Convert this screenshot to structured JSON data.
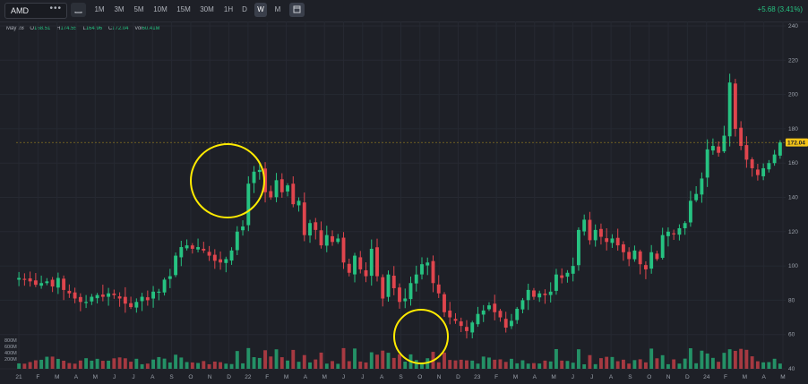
{
  "toolbar": {
    "symbol": "AMD",
    "more": "•••",
    "timeframes": [
      "1M",
      "3M",
      "5M",
      "10M",
      "15M",
      "30M",
      "1H",
      "D",
      "W",
      "M"
    ],
    "active_timeframe": "W",
    "change": "+5.68 (3.41%)"
  },
  "ohlc": {
    "date": "May 28",
    "o_label": "O",
    "o": "168.51",
    "h_label": "H",
    "h": "174.55",
    "l_label": "L",
    "l": "164.96",
    "c_label": "C",
    "c": "172.04",
    "vol_label": "Vol",
    "vol": "60.41M"
  },
  "colors": {
    "up": "#26c281",
    "down": "#e0454d",
    "background": "#1e2027",
    "price_tag": "#f5c518",
    "circle": "#ffeb00"
  },
  "chart_data": {
    "type": "candlestick",
    "ylim": [
      40,
      240
    ],
    "price_ticks": [
      "240",
      "220",
      "200",
      "180",
      "160",
      "140",
      "120",
      "100",
      "80",
      "60",
      "40"
    ],
    "volume_ticks": [
      "800M",
      "600M",
      "400M",
      "200M"
    ],
    "x_ticks": [
      "21",
      "F",
      "M",
      "A",
      "M",
      "J",
      "J",
      "A",
      "S",
      "O",
      "N",
      "D",
      "22",
      "F",
      "M",
      "A",
      "M",
      "J",
      "J",
      "A",
      "S",
      "O",
      "N",
      "D",
      "23",
      "F",
      "M",
      "A",
      "M",
      "J",
      "J",
      "A",
      "S",
      "O",
      "N",
      "D",
      "24",
      "F",
      "M",
      "A",
      "M"
    ],
    "last_price": "172.04",
    "weekly_close": [
      93,
      92,
      91,
      89,
      90,
      91,
      88,
      93,
      86,
      84,
      81,
      79,
      79,
      82,
      83,
      82,
      84,
      83,
      81,
      78,
      76,
      79,
      82,
      80,
      85,
      85,
      92,
      94,
      106,
      111,
      112,
      110,
      111,
      109,
      106,
      103,
      102,
      104,
      109,
      120,
      123,
      148,
      155,
      156,
      143,
      140,
      150,
      143,
      147,
      136,
      138,
      118,
      125,
      121,
      112,
      118,
      114,
      116,
      102,
      96,
      106,
      98,
      94,
      110,
      94,
      81,
      95,
      87,
      79,
      81,
      90,
      95,
      101,
      102,
      90,
      84,
      73,
      70,
      68,
      65,
      62,
      67,
      72,
      74,
      77,
      73,
      70,
      64,
      68,
      75,
      80,
      86,
      82,
      84,
      83,
      85,
      95,
      93,
      96,
      100,
      121,
      127,
      115,
      121,
      117,
      114,
      116,
      112,
      108,
      104,
      109,
      101,
      98,
      108,
      104,
      118,
      120,
      119,
      122,
      125,
      138,
      142,
      151,
      168,
      170,
      166,
      176,
      207,
      180,
      170,
      162,
      157,
      153,
      157,
      160,
      165,
      172
    ]
  },
  "annotations": [
    "circle-peak-2021",
    "circle-low-2022"
  ]
}
